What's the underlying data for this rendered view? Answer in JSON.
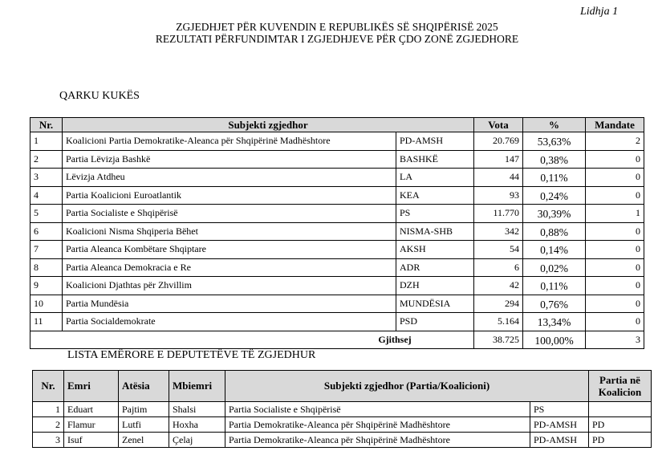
{
  "annex_label": "Lidhja 1",
  "title_line1": "ZGJEDHJET PËR KUVENDIN E REPUBLIKËS SË SHQIPËRISË 2025",
  "title_line2": "REZULTATI PËRFUNDIMTAR I ZGJEDHJEVE PËR ÇDO ZONË ZGJEDHORE",
  "region": "QARKU KUKËS",
  "results": {
    "headers": {
      "nr": "Nr.",
      "subject": "Subjekti zgjedhor",
      "votes": "Vota",
      "pct": "%",
      "seats": "Mandate"
    },
    "rows": [
      {
        "nr": "1",
        "name": "Koalicioni Partia Demokratike-Aleanca për Shqipërinë Madhështore",
        "code": "PD-AMSH",
        "votes": "20.769",
        "pct": "53,63%",
        "seats": "2"
      },
      {
        "nr": "2",
        "name": "Partia Lëvizja Bashkë",
        "code": "BASHKË",
        "votes": "147",
        "pct": "0,38%",
        "seats": "0"
      },
      {
        "nr": "3",
        "name": "Lëvizja Atdheu",
        "code": "LA",
        "votes": "44",
        "pct": "0,11%",
        "seats": "0"
      },
      {
        "nr": "4",
        "name": "Partia Koalicioni Euroatlantik",
        "code": "KEA",
        "votes": "93",
        "pct": "0,24%",
        "seats": "0"
      },
      {
        "nr": "5",
        "name": "Partia Socialiste e Shqipërisë",
        "code": "PS",
        "votes": "11.770",
        "pct": "30,39%",
        "seats": "1"
      },
      {
        "nr": "6",
        "name": "Koalicioni Nisma Shqiperia Bëhet",
        "code": "NISMA-SHB",
        "votes": "342",
        "pct": "0,88%",
        "seats": "0"
      },
      {
        "nr": "7",
        "name": "Partia Aleanca Kombëtare Shqiptare",
        "code": "AKSH",
        "votes": "54",
        "pct": "0,14%",
        "seats": "0"
      },
      {
        "nr": "8",
        "name": "Partia Aleanca Demokracia e Re",
        "code": "ADR",
        "votes": "6",
        "pct": "0,02%",
        "seats": "0"
      },
      {
        "nr": "9",
        "name": "Koalicioni Djathtas për Zhvillim",
        "code": "DZH",
        "votes": "42",
        "pct": "0,11%",
        "seats": "0"
      },
      {
        "nr": "10",
        "name": "Partia Mundësia",
        "code": "MUNDËSIA",
        "votes": "294",
        "pct": "0,76%",
        "seats": "0"
      },
      {
        "nr": "11",
        "name": "Partia Socialdemokrate",
        "code": "PSD",
        "votes": "5.164",
        "pct": "13,34%",
        "seats": "0"
      }
    ],
    "total": {
      "label": "Gjithsej",
      "votes": "38.725",
      "pct": "100,00%",
      "seats": "3"
    }
  },
  "deputies_title": "LISTA EMËRORE E DEPUTETËVE TË ZGJEDHUR",
  "deputies": {
    "headers": {
      "nr": "Nr.",
      "first": "Emri",
      "father": "Atësia",
      "last": "Mbiemri",
      "subject": "Subjekti zgjedhor (Partia/Koalicioni)",
      "coalition_party": "Partia në Koalicion"
    },
    "rows": [
      {
        "nr": "1",
        "first": "Eduart",
        "father": "Pajtim",
        "last": "Shalsi",
        "subject": "Partia Socialiste e Shqipërisë",
        "code": "PS",
        "coalition_party": ""
      },
      {
        "nr": "2",
        "first": "Flamur",
        "father": "Lutfi",
        "last": "Hoxha",
        "subject": "Partia Demokratike-Aleanca për Shqipërinë Madhështore",
        "code": "PD-AMSH",
        "coalition_party": "PD"
      },
      {
        "nr": "3",
        "first": "Isuf",
        "father": "Zenel",
        "last": "Çelaj",
        "subject": "Partia Demokratike-Aleanca për Shqipërinë Madhështore",
        "code": "PD-AMSH",
        "coalition_party": "PD"
      }
    ]
  }
}
